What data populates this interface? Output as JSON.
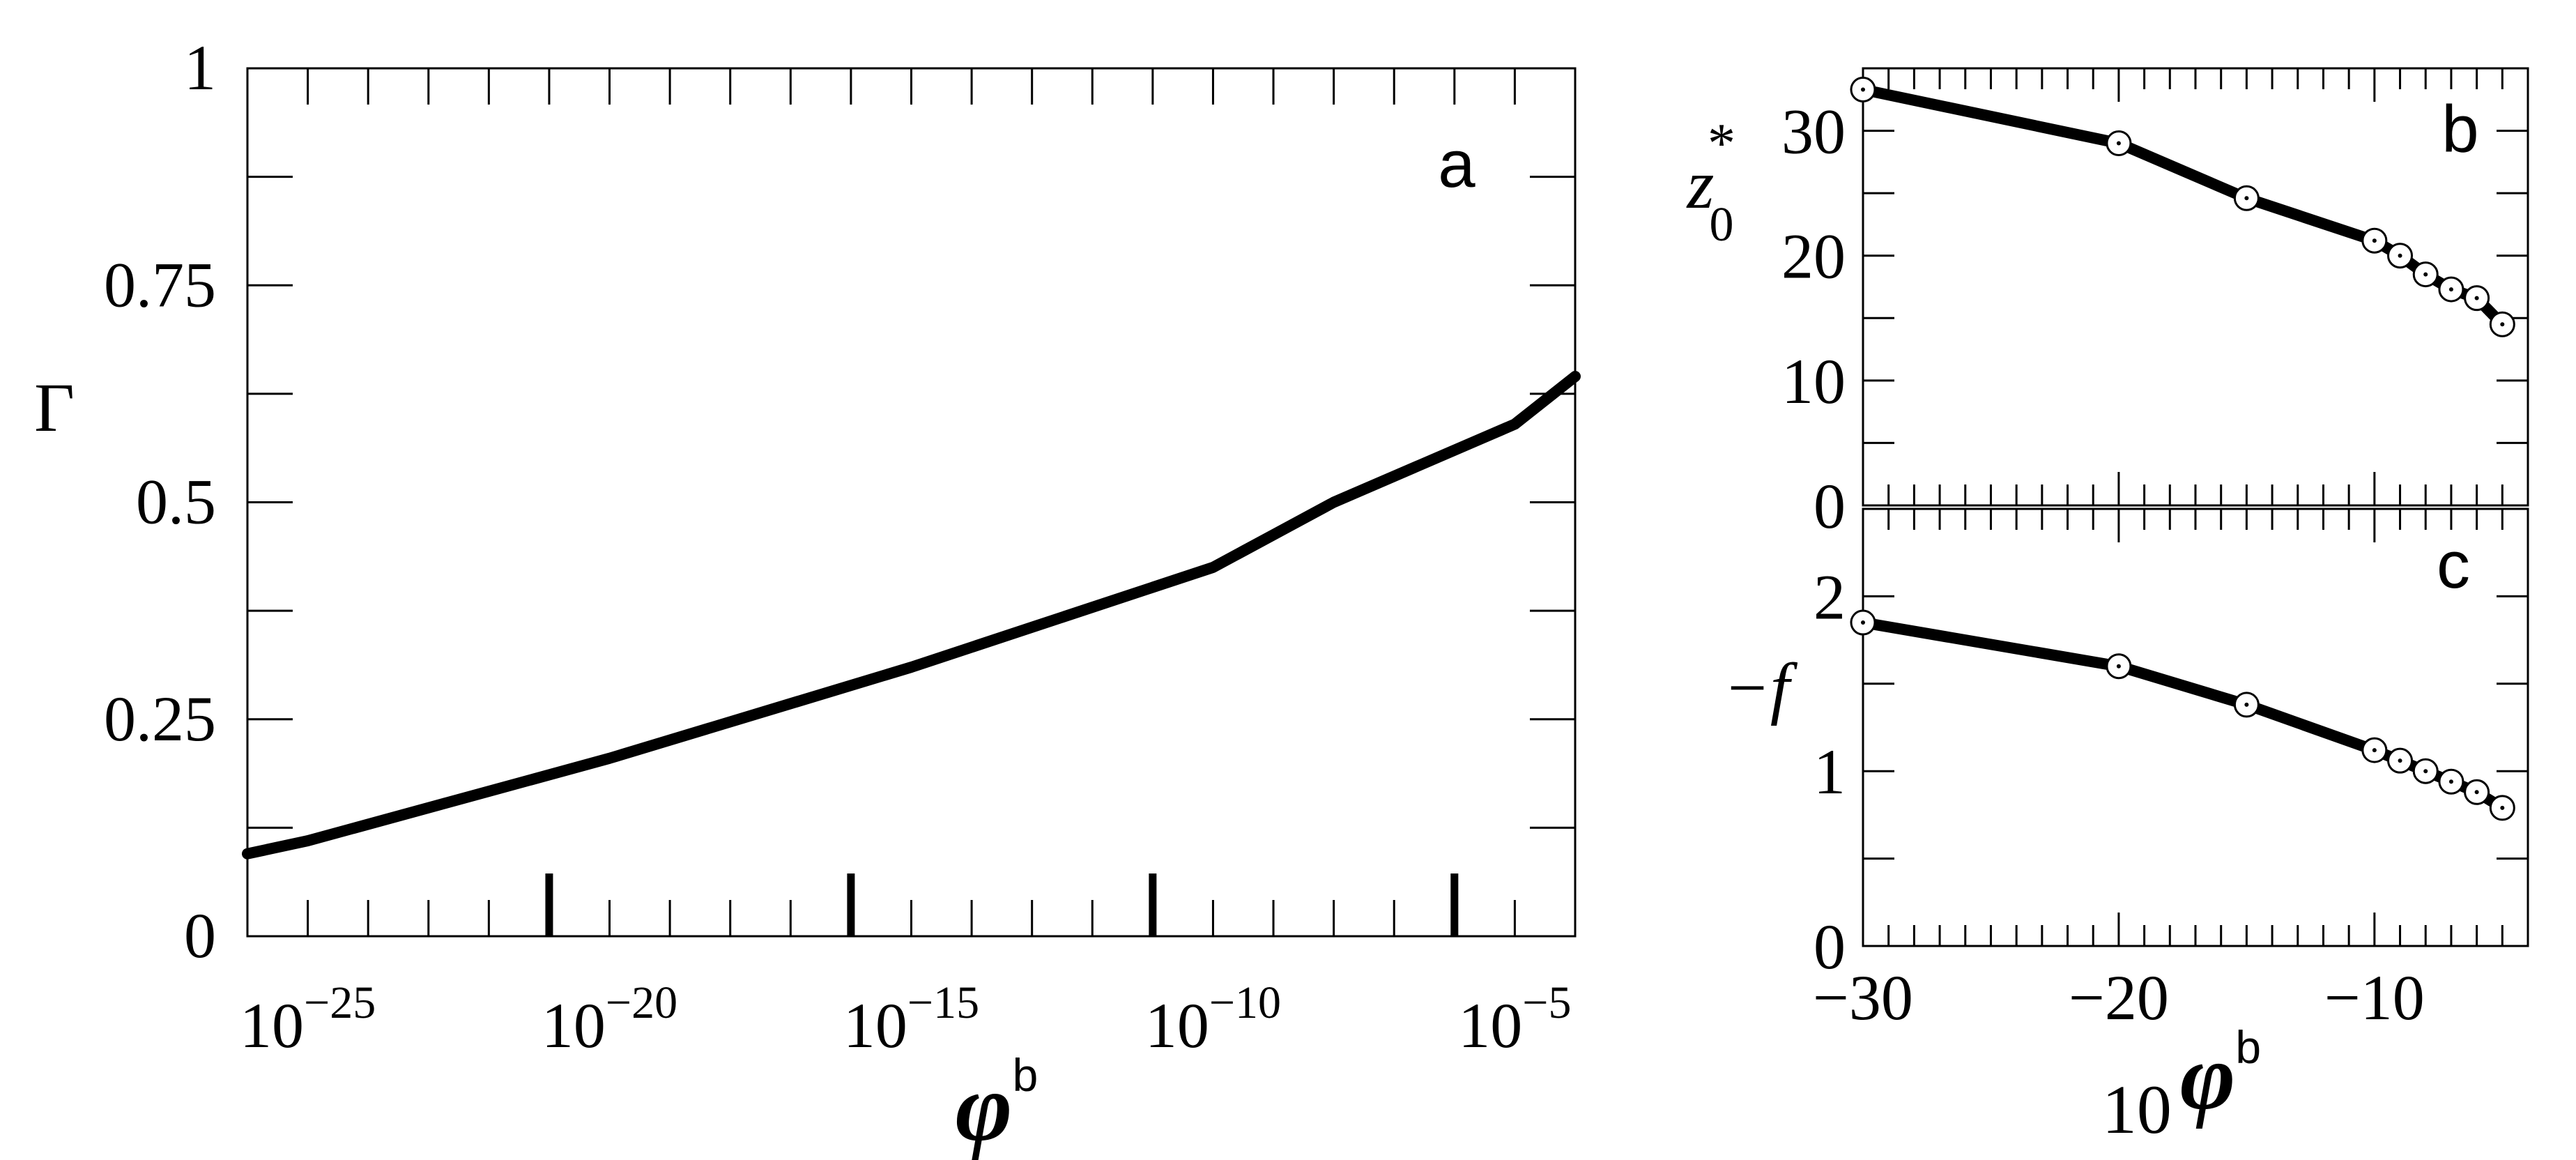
{
  "colors": {
    "line": "#000000",
    "background": "#ffffff",
    "marker_face": "#ffffff"
  },
  "chart_data": [
    {
      "panel": "a",
      "type": "line",
      "xscale": "log",
      "xlim": [
        1e-26,
        0.0001
      ],
      "ylim": [
        0,
        1
      ],
      "xlabel": "φ",
      "xlabel_sup": "b",
      "ylabel": "Γ",
      "x_ticklabels": [
        {
          "base": "10",
          "exp": "−25"
        },
        {
          "base": "10",
          "exp": "−20"
        },
        {
          "base": "10",
          "exp": "−15"
        },
        {
          "base": "10",
          "exp": "−10"
        },
        {
          "base": "10",
          "exp": "−5"
        }
      ],
      "major_ticks_log10": [
        -21,
        -16,
        -11,
        -6
      ],
      "y_ticklabels": [
        "0",
        "0.25",
        "0.5",
        "0.75",
        "1"
      ],
      "y_ticks": [
        0,
        0.25,
        0.5,
        0.75,
        1
      ],
      "series": [
        {
          "x": [
            1e-26,
            1e-25,
            1e-20,
            1e-15,
            1e-10,
            1e-08,
            1e-05,
            0.0001
          ],
          "y": [
            0.095,
            0.11,
            0.205,
            0.31,
            0.425,
            0.5,
            0.59,
            0.645
          ]
        }
      ],
      "grid": false,
      "annotation": "a"
    },
    {
      "panel": "b",
      "type": "line",
      "xlim": [
        -30,
        -4
      ],
      "ylim": [
        0,
        35
      ],
      "ylabel": "z",
      "ylabel_sub": "0",
      "ylabel_sup": "*",
      "y_ticklabels": [
        "0",
        "10",
        "20",
        "30"
      ],
      "y_ticks": [
        0,
        10,
        20,
        30
      ],
      "series": [
        {
          "x": [
            -30,
            -20,
            -15,
            -10,
            -9,
            -8,
            -7,
            -6,
            -5
          ],
          "y": [
            33.3,
            29.0,
            24.6,
            21.2,
            20.0,
            18.5,
            17.3,
            16.6,
            14.5
          ],
          "markers": "open-circle"
        }
      ],
      "grid": false,
      "annotation": "b"
    },
    {
      "panel": "c",
      "type": "line",
      "xlim": [
        -30,
        -4
      ],
      "ylim": [
        0,
        2.5
      ],
      "xlabel_prefix": "10",
      "xlabel": "φ",
      "xlabel_sup": "b",
      "ylabel": "−f",
      "x_ticklabels": [
        "−30",
        "−20",
        "−10"
      ],
      "x_ticks": [
        -30,
        -20,
        -10
      ],
      "y_ticklabels": [
        "0",
        "1",
        "2"
      ],
      "y_ticks": [
        0,
        1,
        2
      ],
      "series": [
        {
          "x": [
            -30,
            -20,
            -15,
            -10,
            -9,
            -8,
            -7,
            -6,
            -5
          ],
          "y": [
            1.85,
            1.6,
            1.38,
            1.12,
            1.06,
            1.0,
            0.94,
            0.88,
            0.79
          ],
          "markers": "open-circle"
        }
      ],
      "grid": false,
      "annotation": "c"
    }
  ]
}
